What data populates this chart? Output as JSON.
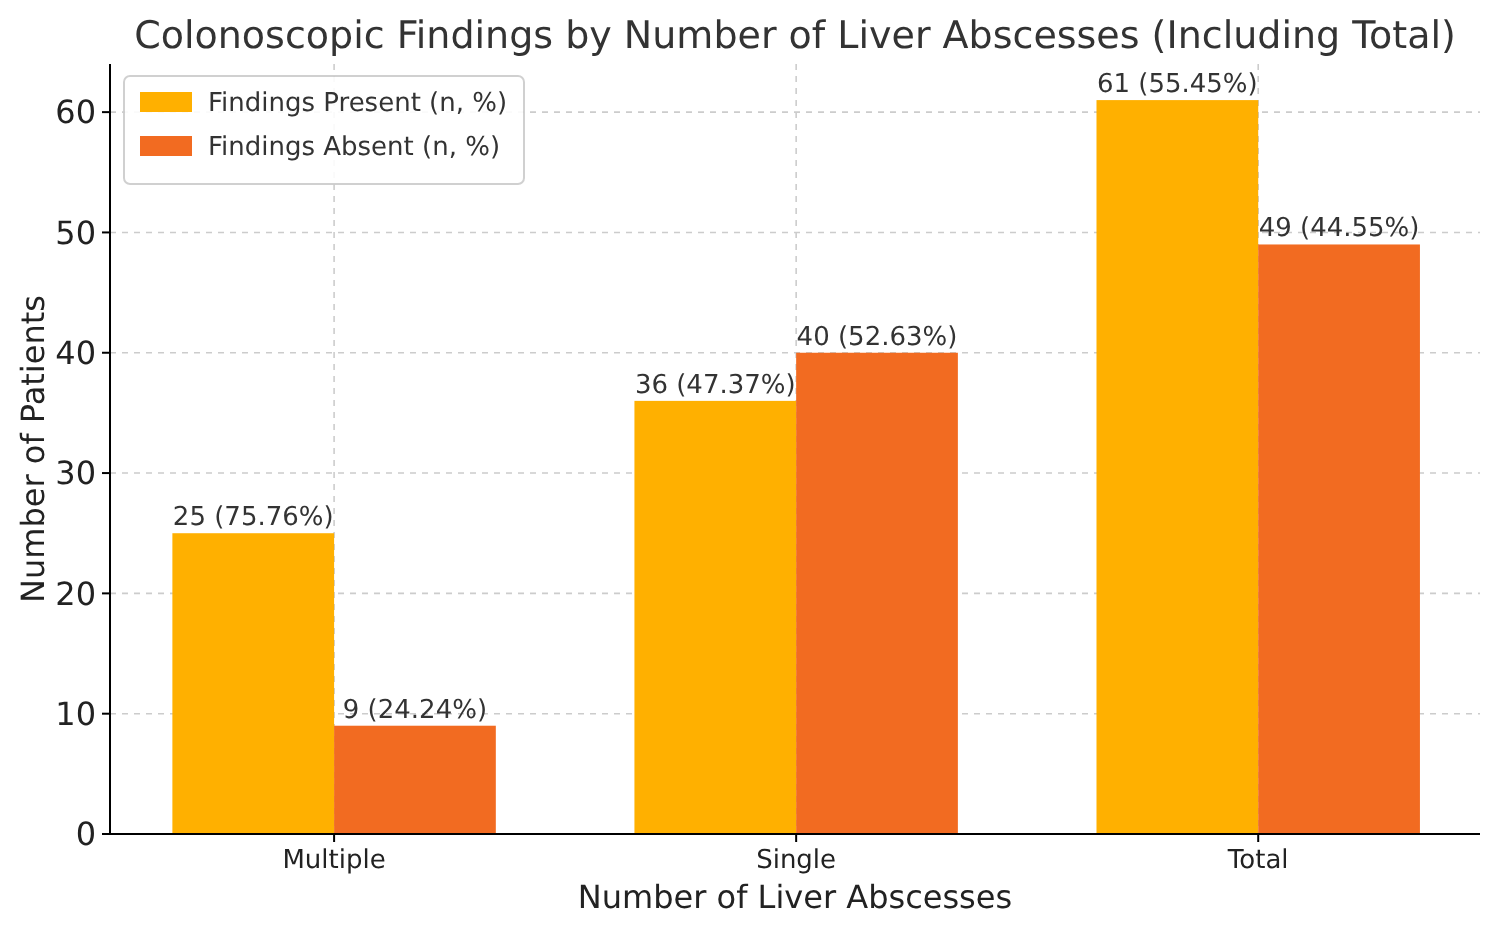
{
  "chart_data": {
    "type": "bar",
    "title": "Colonoscopic Findings by Number of Liver Abscesses (Including Total)",
    "xlabel": "Number of Liver Abscesses",
    "ylabel": "Number of Patients",
    "categories": [
      "Multiple",
      "Single",
      "Total"
    ],
    "series": [
      {
        "name": "Findings Present (n, %)",
        "color": "#ffb000",
        "values": [
          25,
          36,
          61
        ],
        "value_labels": [
          "25 (75.76%)",
          "36 (47.37%)",
          "61 (55.45%)"
        ]
      },
      {
        "name": "Findings Absent (n, %)",
        "color": "#f26b21",
        "values": [
          9,
          40,
          49
        ],
        "value_labels": [
          "9 (24.24%)",
          "40 (52.63%)",
          "49 (44.55%)"
        ]
      }
    ],
    "ylim": [
      0,
      64
    ],
    "yticks": [
      0,
      10,
      20,
      30,
      40,
      50,
      60
    ],
    "grid": true,
    "legend": "top left"
  }
}
